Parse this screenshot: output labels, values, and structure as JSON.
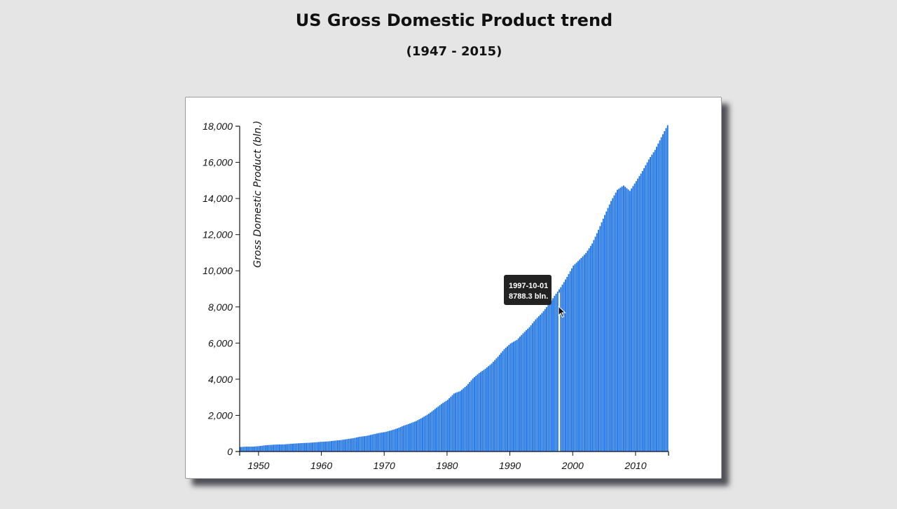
{
  "title": "US Gross Domestic Product trend",
  "subtitle": "(1947 - 2015)",
  "tooltip": {
    "date": "1997-10-01",
    "value_text": "8788.3 bln."
  },
  "colors": {
    "bar": "#1f75e8",
    "highlight": "#fff6b0",
    "background": "#e5e5e5",
    "panel": "#ffffff"
  },
  "chart_data": {
    "type": "bar",
    "title": "US Gross Domestic Product trend",
    "subtitle": "(1947 - 2015)",
    "xlabel": "",
    "ylabel": "Gross Domestic Product (bln.)",
    "xlim": [
      1947,
      2015.25
    ],
    "ylim": [
      0,
      18000
    ],
    "yticks": [
      0,
      2000,
      4000,
      6000,
      8000,
      10000,
      12000,
      14000,
      16000,
      18000
    ],
    "ytick_labels": [
      "0",
      "2,000",
      "4,000",
      "6,000",
      "8,000",
      "10,000",
      "12,000",
      "14,000",
      "16,000",
      "18,000"
    ],
    "xticks": [
      1950,
      1960,
      1970,
      1980,
      1990,
      2000,
      2010
    ],
    "xtick_labels": [
      "1950",
      "1960",
      "1970",
      "1980",
      "1990",
      "2000",
      "2010"
    ],
    "frequency": "quarterly",
    "highlight_date": "1997-10-01",
    "highlight_value": 8788.3,
    "series": [
      {
        "year_values": [
          [
            1947,
            250
          ],
          [
            1948,
            270
          ],
          [
            1949,
            270
          ],
          [
            1950,
            300
          ],
          [
            1951,
            345
          ],
          [
            1952,
            370
          ],
          [
            1953,
            390
          ],
          [
            1954,
            395
          ],
          [
            1955,
            425
          ],
          [
            1956,
            450
          ],
          [
            1957,
            470
          ],
          [
            1958,
            485
          ],
          [
            1959,
            510
          ],
          [
            1960,
            540
          ],
          [
            1961,
            560
          ],
          [
            1962,
            600
          ],
          [
            1963,
            635
          ],
          [
            1964,
            685
          ],
          [
            1965,
            740
          ],
          [
            1966,
            815
          ],
          [
            1967,
            860
          ],
          [
            1968,
            940
          ],
          [
            1969,
            1020
          ],
          [
            1970,
            1075
          ],
          [
            1971,
            1170
          ],
          [
            1972,
            1280
          ],
          [
            1973,
            1430
          ],
          [
            1974,
            1550
          ],
          [
            1975,
            1690
          ],
          [
            1976,
            1880
          ],
          [
            1977,
            2090
          ],
          [
            1978,
            2360
          ],
          [
            1979,
            2630
          ],
          [
            1980,
            2860
          ],
          [
            1981,
            3210
          ],
          [
            1982,
            3345
          ],
          [
            1983,
            3640
          ],
          [
            1984,
            4040
          ],
          [
            1985,
            4340
          ],
          [
            1986,
            4580
          ],
          [
            1987,
            4870
          ],
          [
            1988,
            5250
          ],
          [
            1989,
            5660
          ],
          [
            1990,
            5980
          ],
          [
            1991,
            6170
          ],
          [
            1992,
            6540
          ],
          [
            1993,
            6880
          ],
          [
            1994,
            7310
          ],
          [
            1995,
            7660
          ],
          [
            1996,
            8100
          ],
          [
            1997,
            8610
          ],
          [
            1998,
            9090
          ],
          [
            1999,
            9660
          ],
          [
            2000,
            10290
          ],
          [
            2001,
            10620
          ],
          [
            2002,
            10980
          ],
          [
            2003,
            11510
          ],
          [
            2004,
            12270
          ],
          [
            2005,
            13090
          ],
          [
            2006,
            13860
          ],
          [
            2007,
            14480
          ],
          [
            2008,
            14720
          ],
          [
            2009,
            14420
          ],
          [
            2010,
            14960
          ],
          [
            2011,
            15520
          ],
          [
            2012,
            16160
          ],
          [
            2013,
            16690
          ],
          [
            2014,
            17390
          ],
          [
            2015,
            18060
          ]
        ]
      }
    ]
  }
}
